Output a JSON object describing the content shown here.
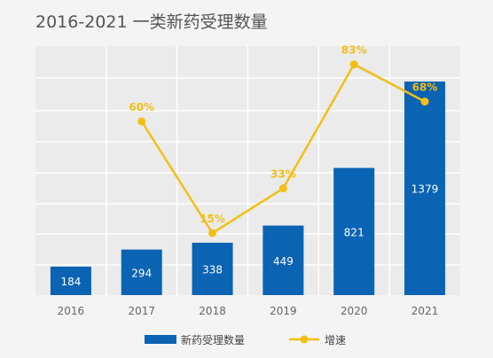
{
  "chart_data": {
    "type": "bar",
    "title": "2016-2021 一类新药受理数量",
    "categories": [
      "2016",
      "2017",
      "2018",
      "2019",
      "2020",
      "2021"
    ],
    "series": [
      {
        "name": "新药受理数量",
        "type": "bar",
        "values": [
          184,
          294,
          338,
          449,
          821,
          1379
        ],
        "labels": [
          "184",
          "294",
          "338",
          "449",
          "821",
          "1379"
        ],
        "color": "#0a63b3"
      },
      {
        "name": "增速",
        "type": "line",
        "values": [
          null,
          60,
          15,
          33,
          83,
          68
        ],
        "labels": [
          "",
          "60%",
          "15%",
          "33%",
          "83%",
          "68%"
        ],
        "color": "#f2bf16"
      }
    ],
    "grid": true,
    "legend_position": "bottom"
  },
  "colors": {
    "background": "#f4f4f4",
    "plot_background": "#ebebeb",
    "gridline": "#ffffff",
    "axis_text": "#666666"
  }
}
